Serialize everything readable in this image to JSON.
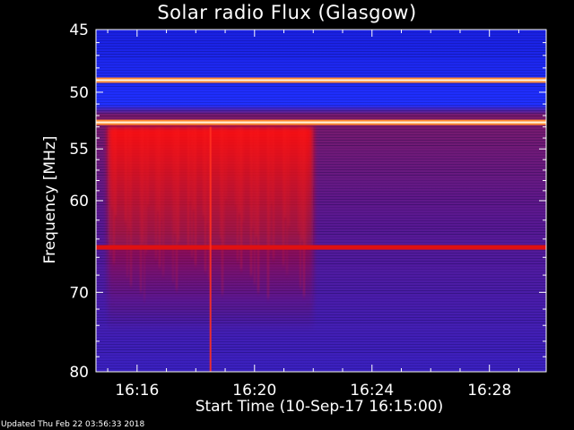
{
  "chart_data": {
    "type": "heatmap",
    "title": "Solar radio Flux (Glasgow)",
    "xlabel": "Start Time (10-Sep-17 16:15:00)",
    "ylabel": "Frequency [MHz]",
    "y_scale": "log",
    "ylim": [
      45,
      80
    ],
    "y_ticks": [
      45,
      50,
      55,
      60,
      70,
      80
    ],
    "x_range_minutes": [
      "16:14:36",
      "16:29:56"
    ],
    "x_ticks": [
      "16:16",
      "16:20",
      "16:24",
      "16:28"
    ],
    "x_tick_minutes": [
      "16:16",
      "16:20",
      "16:24",
      "16:28"
    ],
    "colormap": [
      "#000000",
      "#1a0aa0",
      "#2020ff",
      "#8a1a8a",
      "#d01010",
      "#ffb060",
      "#ffffff"
    ],
    "bright_bands_mhz": [
      49.0,
      52.6,
      64.9
    ],
    "burst_region": {
      "start": "16:15",
      "end": "16:22",
      "freq_low_mhz": 53,
      "freq_high_mhz": 75
    },
    "vertical_spike_time": "16:18:30",
    "grid": false,
    "legend": "none"
  },
  "footer": {
    "updated": "Updated Thu Feb 22 03:56:33 2018"
  }
}
